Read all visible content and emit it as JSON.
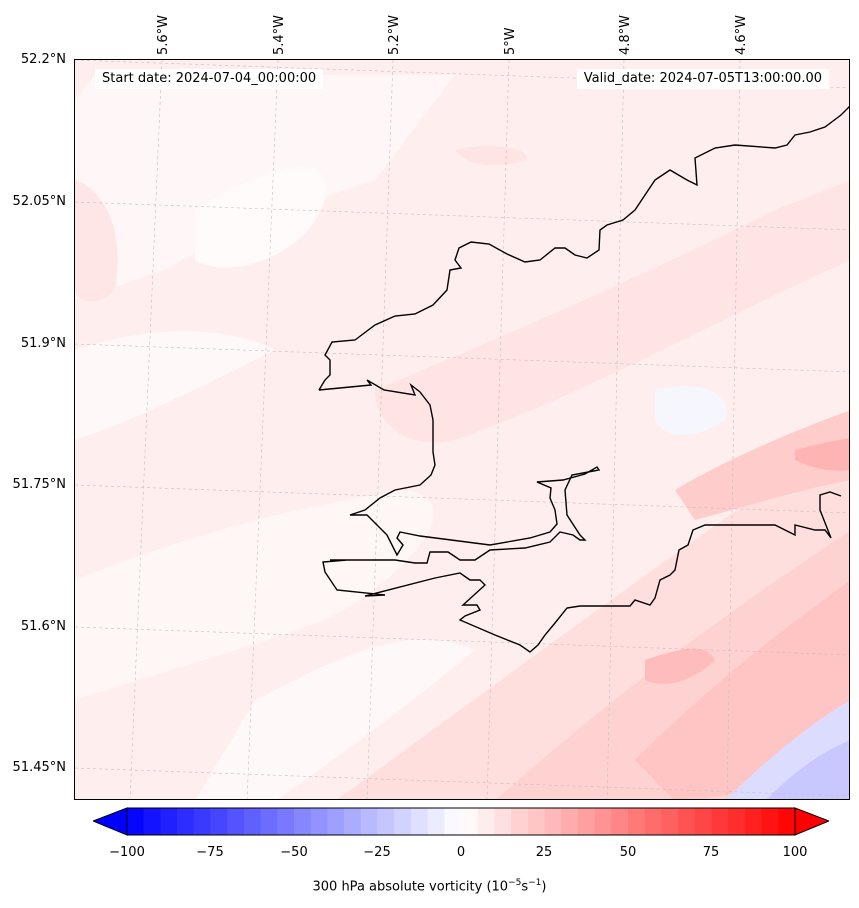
{
  "header": {
    "start_date": "Start date: 2024-07-04_00:00:00",
    "valid_date": "Valid_date: 2024-07-05T13:00:00.00"
  },
  "axes": {
    "lat_labels": [
      "52.2°N",
      "52.05°N",
      "51.9°N",
      "51.75°N",
      "51.6°N",
      "51.45°N"
    ],
    "lon_labels": [
      "5.6°W",
      "5.4°W",
      "5.2°W",
      "5°W",
      "4.8°W",
      "4.6°W"
    ]
  },
  "colorbar": {
    "ticks": [
      "−100",
      "−75",
      "−50",
      "−25",
      "0",
      "25",
      "50",
      "75",
      "100"
    ],
    "label_main": "300 hPa absolute vorticity (10",
    "label_exp1": "−5",
    "label_mid": "s",
    "label_exp2": "−1",
    "label_end": ")",
    "min": -100,
    "max": 100,
    "step": 5,
    "colormap": "bwr",
    "extend": "both"
  },
  "colors": {
    "coastline": "#000000",
    "gridline": "#b0b0b0"
  }
}
